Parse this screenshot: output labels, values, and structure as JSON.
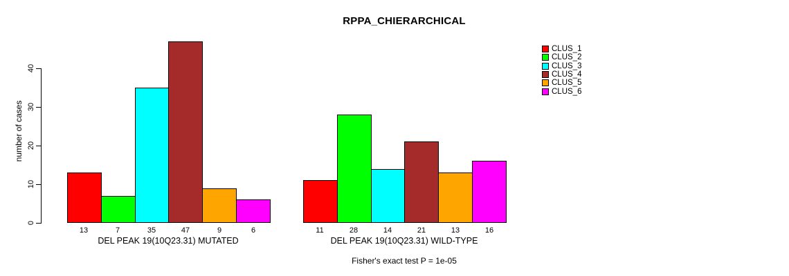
{
  "title": "RPPA_CHIERARCHICAL",
  "chart_data": {
    "type": "bar",
    "title": "RPPA_CHIERARCHICAL",
    "ylabel": "number of cases",
    "xlabel": "",
    "ylim": [
      0,
      47
    ],
    "yticks": [
      0,
      10,
      20,
      30,
      40
    ],
    "grid": false,
    "legend_position": "right",
    "clusters": [
      {
        "label": "CLUS_1",
        "color": "#FF0000"
      },
      {
        "label": "CLUS_2",
        "color": "#00FF00"
      },
      {
        "label": "CLUS_3",
        "color": "#00FFFF"
      },
      {
        "label": "CLUS_4",
        "color": "#A52A2A"
      },
      {
        "label": "CLUS_5",
        "color": "#FFA500"
      },
      {
        "label": "CLUS_6",
        "color": "#FF00FF"
      }
    ],
    "groups": [
      {
        "label": "DEL PEAK 19(10Q23.31) MUTATED",
        "values": [
          13,
          7,
          35,
          47,
          9,
          6
        ]
      },
      {
        "label": "DEL PEAK 19(10Q23.31) WILD-TYPE",
        "values": [
          11,
          28,
          14,
          21,
          13,
          16
        ]
      }
    ],
    "footnote": "Fisher's exact test P = 1e-05"
  }
}
